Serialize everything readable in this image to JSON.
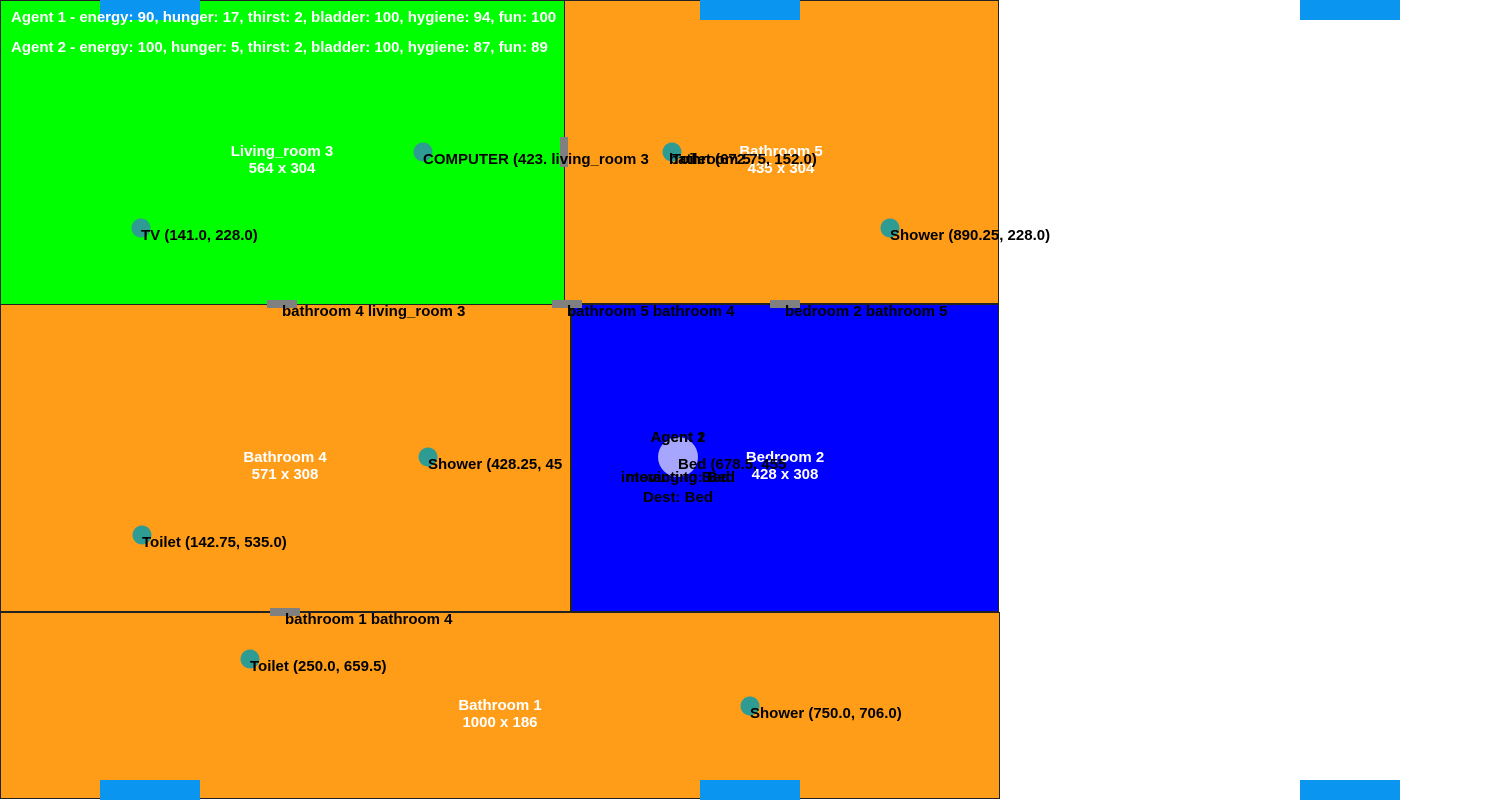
{
  "colors": {
    "living_room": "#00ff00",
    "bathroom": "#ff9d19",
    "bedroom": "#0000ff",
    "object": "#2e9c93",
    "door": "#808080",
    "window": "#0a96f0",
    "agent": "#a6a6ff"
  },
  "rooms": {
    "living_room_3": {
      "name": "Living_room 3",
      "size": "564 x 304"
    },
    "bathroom_5": {
      "name": "Bathroom 5",
      "size": "435 x 304"
    },
    "bathroom_4": {
      "name": "Bathroom 4",
      "size": "571 x 308"
    },
    "bedroom_2": {
      "name": "Bedroom 2",
      "size": "428 x 308"
    },
    "bathroom_1": {
      "name": "Bathroom 1",
      "size": "1000 x 186"
    }
  },
  "objects": {
    "computer": {
      "label": "COMPUTER (423. living_room 3",
      "icon": "computer-dot"
    },
    "toilet_b5": {
      "label": "Toilet (672.75, 152.0)",
      "icon": "toilet-dot"
    },
    "tv": {
      "label": "TV (141.0, 228.0)",
      "icon": "tv-dot"
    },
    "shower_b5": {
      "label": "Shower (890.25, 228.0)",
      "icon": "shower-dot"
    },
    "shower_b4": {
      "label": "Shower (428.25, 45",
      "icon": "shower-dot"
    },
    "toilet_b4": {
      "label": "Toilet (142.75, 535.0)",
      "icon": "toilet-dot"
    },
    "toilet_b1": {
      "label": "Toilet (250.0, 659.5)",
      "icon": "toilet-dot"
    },
    "shower_b1": {
      "label": "Shower (750.0, 706.0)",
      "icon": "shower-dot"
    },
    "bed": {
      "label": "Bed (678.5, 455",
      "icon": "bed-dot"
    }
  },
  "doors": {
    "d1": {
      "label": "bathroom 4 living_room 3"
    },
    "d2": {
      "label": "bathroom 5 bathroom 4"
    },
    "d3": {
      "label": "bedroom 2 bathroom 5"
    },
    "d4": {
      "label": "bathroom 1 bathroom 4"
    },
    "d5": {
      "label": "bathroom 5"
    }
  },
  "stats": {
    "agent1": "Agent 1 - energy: 90, hunger: 17, thirst: 2, bladder: 100, hygiene: 94, fun: 100",
    "agent2": "Agent 2 - energy: 100, hunger: 5, thirst: 2, bladder: 100, hygiene: 87, fun: 89"
  },
  "agents": {
    "agent1": {
      "name": "Agent 1",
      "status": "interacting: Bed"
    },
    "agent2": {
      "name": "Agent 2",
      "status": "moving to Bed",
      "dest": "Dest: Bed"
    }
  }
}
